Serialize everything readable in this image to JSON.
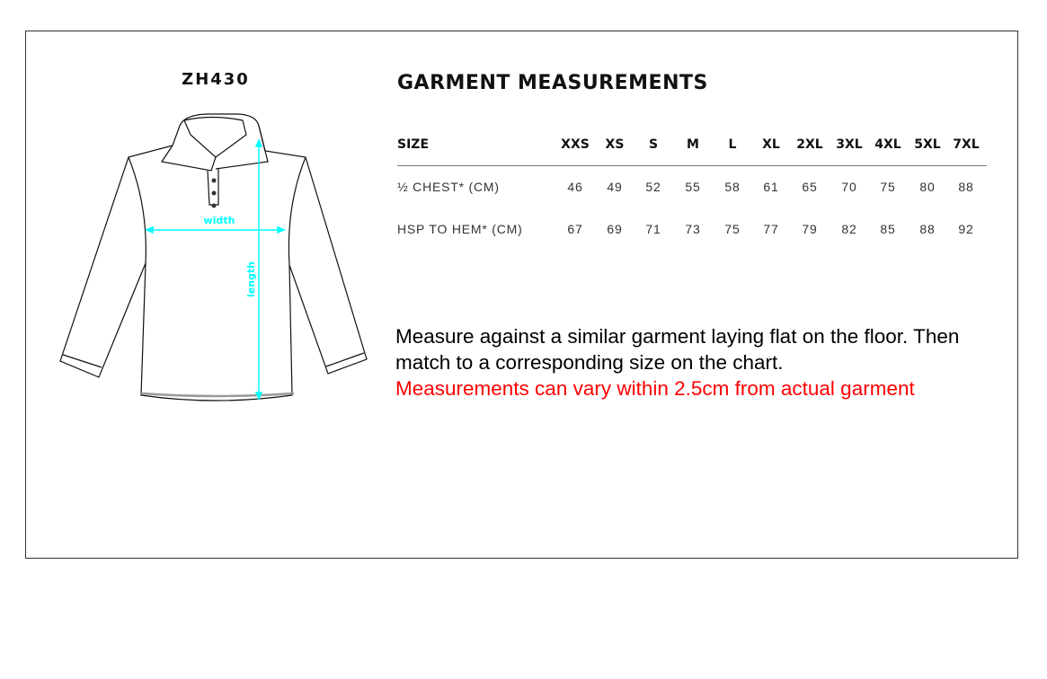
{
  "product_code": "ZH430",
  "title": "GARMENT MEASUREMENTS",
  "table": {
    "header_label": "SIZE",
    "sizes": [
      "XXS",
      "XS",
      "S",
      "M",
      "L",
      "XL",
      "2XL",
      "3XL",
      "4XL",
      "5XL",
      "7XL"
    ],
    "rows": [
      {
        "label": "½ CHEST* (CM)",
        "values": [
          "46",
          "49",
          "52",
          "55",
          "58",
          "61",
          "65",
          "70",
          "75",
          "80",
          "88"
        ]
      },
      {
        "label": "HSP TO HEM* (CM)",
        "values": [
          "67",
          "69",
          "71",
          "73",
          "75",
          "77",
          "79",
          "82",
          "85",
          "88",
          "92"
        ]
      }
    ]
  },
  "diagram": {
    "width_label": "width",
    "length_label": "length",
    "accent_color": "#00ffff"
  },
  "note": {
    "line1": "Measure against a similar garment laying flat on the floor. Then",
    "line2": "match to a corresponding size on the chart.",
    "warning": "Measurements can vary within 2.5cm from actual garment",
    "warning_color": "#ff0000"
  }
}
